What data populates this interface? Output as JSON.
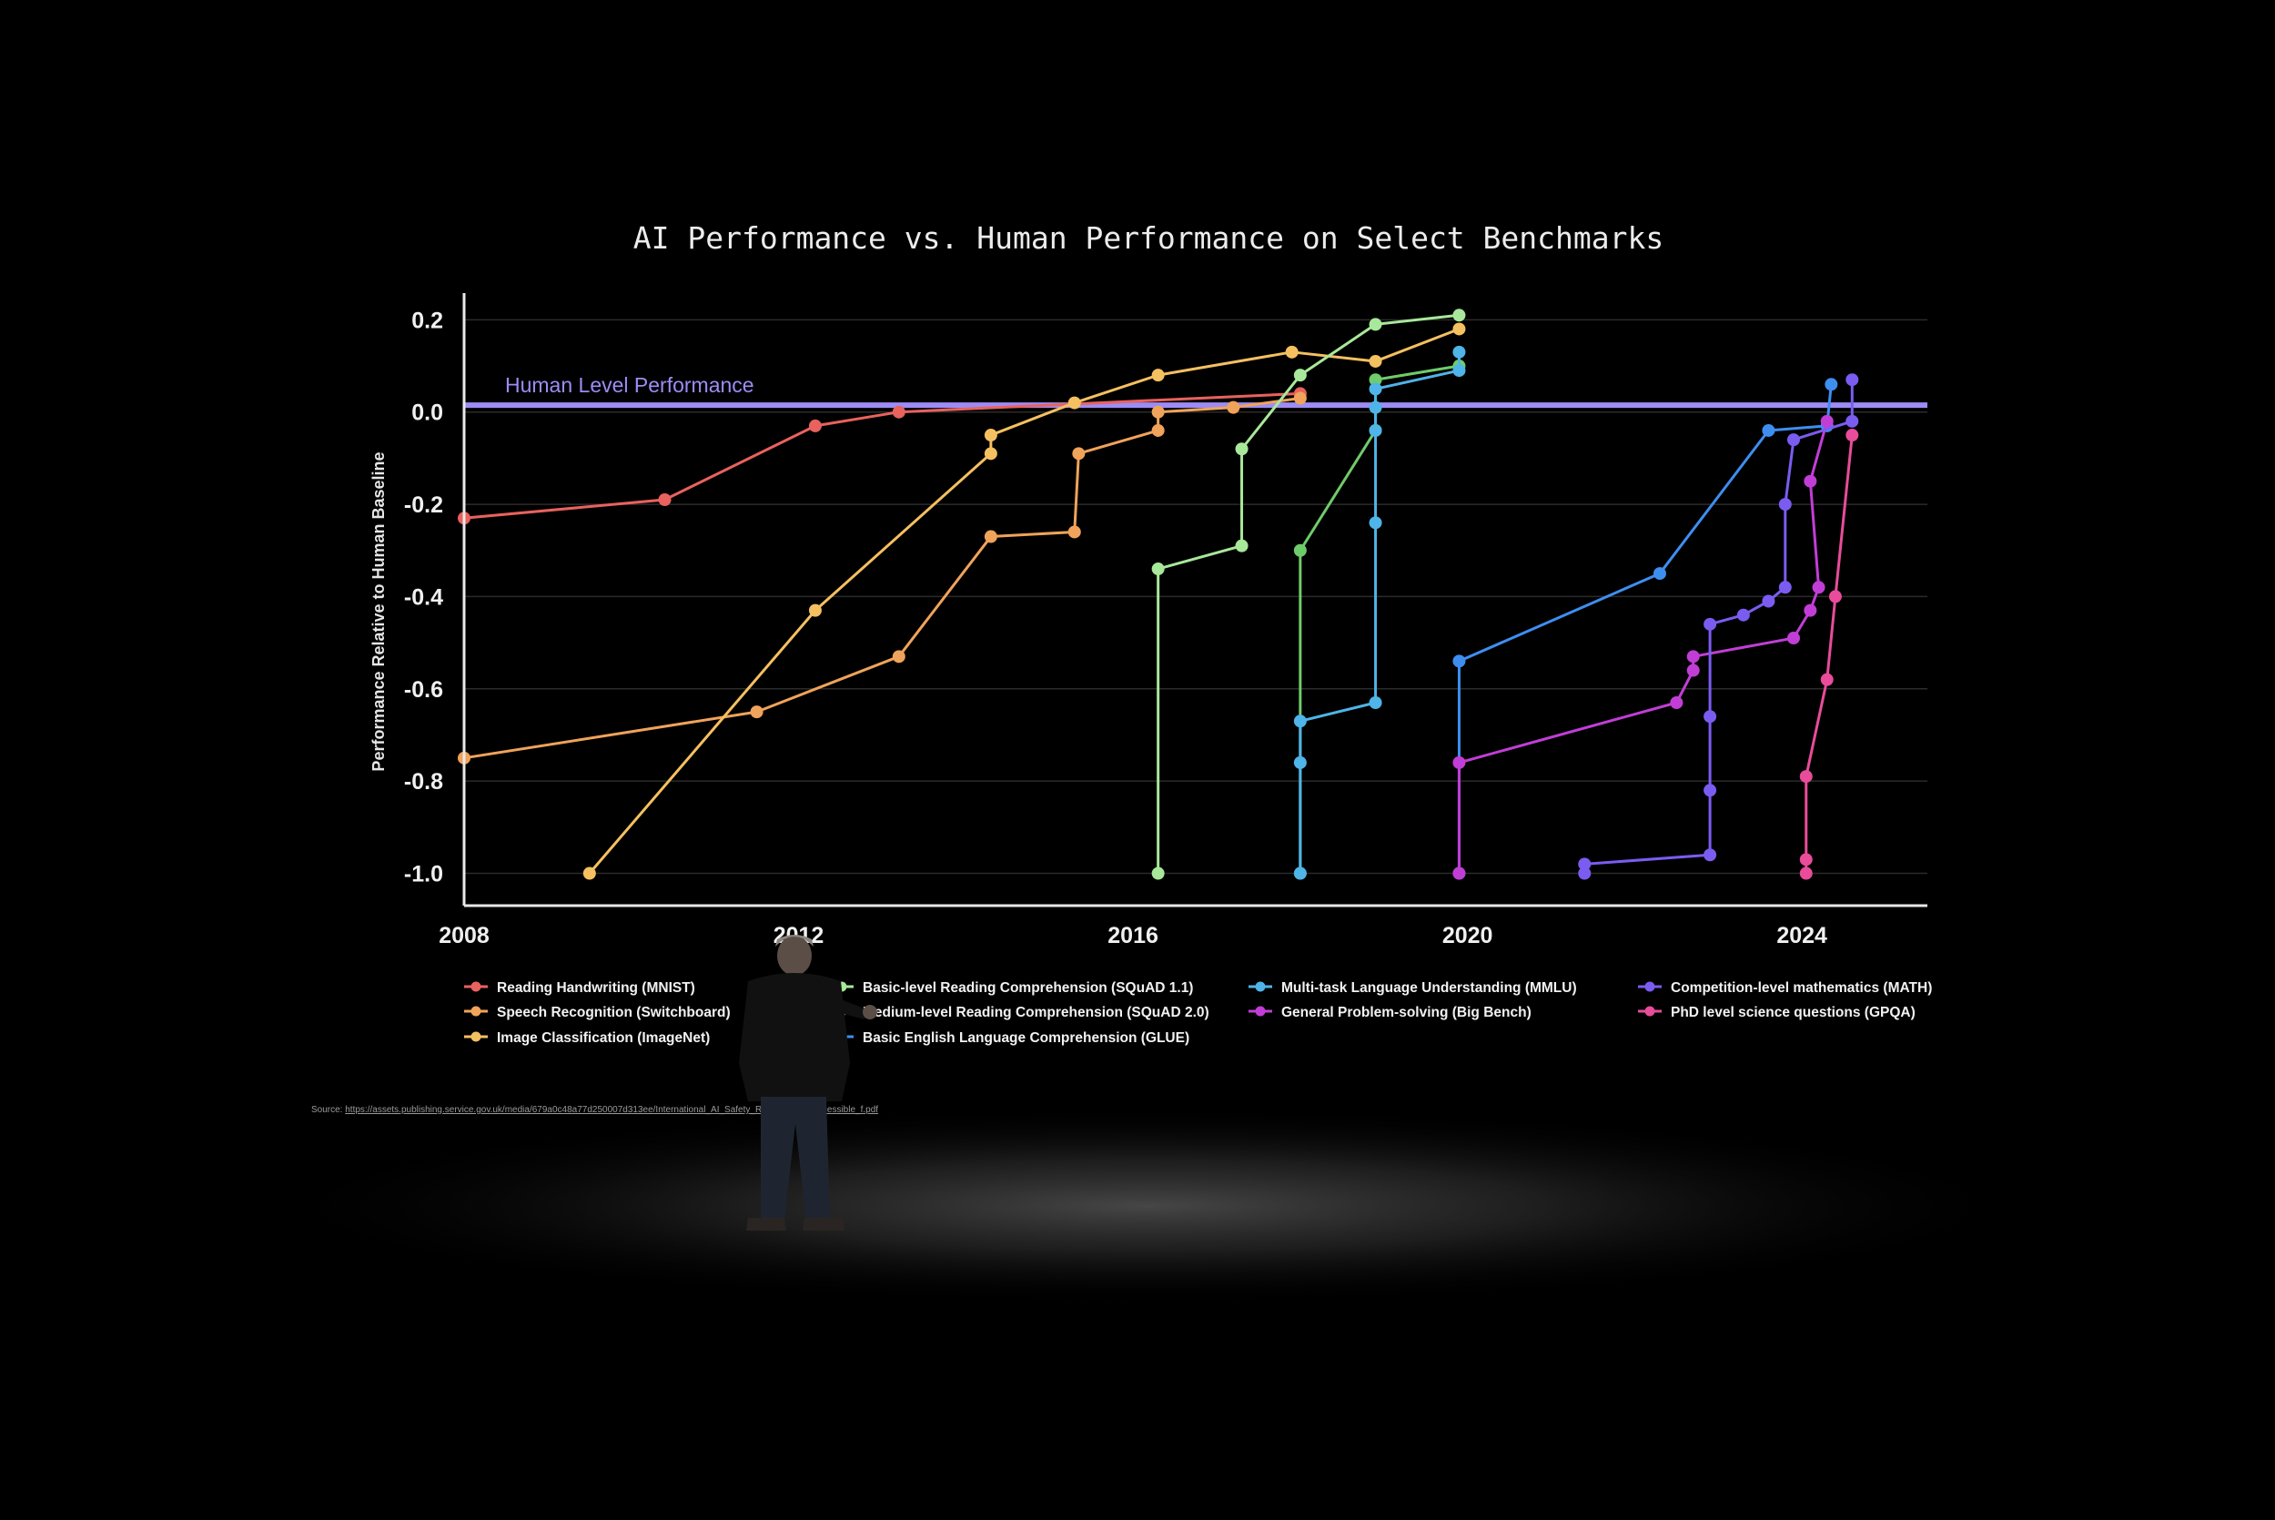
{
  "chart_data": {
    "type": "line",
    "title": "AI Performance vs. Human Performance on Select Benchmarks",
    "ylabel": "Performance Relative to Human Baseline",
    "xlabel": "",
    "xlim": [
      2008,
      2025.5
    ],
    "ylim": [
      -1.07,
      0.25
    ],
    "x_ticks": [
      2008,
      2012,
      2016,
      2020,
      2024
    ],
    "y_ticks": [
      0.2,
      0.0,
      -0.2,
      -0.4,
      -0.6,
      -0.8,
      -1.0
    ],
    "y_tick_labels": [
      "0.2",
      "0.0",
      "-0.2",
      "-0.4",
      "-0.6",
      "-0.8",
      "-1.0"
    ],
    "grid": true,
    "baseline": {
      "label": "Human Level Performance",
      "y": 0.015,
      "color": "#9d8cf5"
    },
    "legend_position": "bottom",
    "series": [
      {
        "name": "Reading Handwriting (MNIST)",
        "color": "#e8625e",
        "points": [
          [
            2008.0,
            -0.23
          ],
          [
            2010.4,
            -0.19
          ],
          [
            2012.2,
            -0.03
          ],
          [
            2013.2,
            0.0
          ],
          [
            2018.0,
            0.04
          ]
        ]
      },
      {
        "name": "Speech Recognition (Switchboard)",
        "color": "#f0a35a",
        "points": [
          [
            2008.0,
            -0.75
          ],
          [
            2011.5,
            -0.65
          ],
          [
            2013.2,
            -0.53
          ],
          [
            2014.3,
            -0.27
          ],
          [
            2015.3,
            -0.26
          ],
          [
            2015.35,
            -0.09
          ],
          [
            2016.3,
            -0.04
          ],
          [
            2016.3,
            0.0
          ],
          [
            2017.2,
            0.01
          ],
          [
            2018.0,
            0.03
          ]
        ]
      },
      {
        "name": "Image Classification (ImageNet)",
        "color": "#f5c060",
        "points": [
          [
            2009.5,
            -1.0
          ],
          [
            2012.2,
            -0.43
          ],
          [
            2014.3,
            -0.09
          ],
          [
            2014.3,
            -0.05
          ],
          [
            2015.3,
            0.02
          ],
          [
            2016.3,
            0.08
          ],
          [
            2017.9,
            0.13
          ],
          [
            2018.9,
            0.11
          ],
          [
            2019.9,
            0.18
          ]
        ]
      },
      {
        "name": "Basic-level Reading Comprehension (SQuAD 1.1)",
        "color": "#a8e89a",
        "points": [
          [
            2016.3,
            -1.0
          ],
          [
            2016.3,
            -0.34
          ],
          [
            2017.3,
            -0.29
          ],
          [
            2017.3,
            -0.08
          ],
          [
            2018.0,
            0.08
          ],
          [
            2018.9,
            0.19
          ],
          [
            2019.9,
            0.21
          ]
        ]
      },
      {
        "name": "Medium-level Reading Comprehension (SQuAD 2.0)",
        "color": "#6fcc6a",
        "points": [
          [
            2018.0,
            -1.0
          ],
          [
            2018.0,
            -0.3
          ],
          [
            2018.9,
            -0.04
          ],
          [
            2018.9,
            0.07
          ],
          [
            2019.9,
            0.1
          ]
        ]
      },
      {
        "name": "Basic English Language Comprehension (GLUE)",
        "color": "#3e8ef0",
        "points": [
          [
            2019.9,
            -1.0
          ],
          [
            2019.9,
            -0.54
          ],
          [
            2022.3,
            -0.35
          ],
          [
            2023.6,
            -0.04
          ],
          [
            2024.3,
            -0.03
          ],
          [
            2024.35,
            0.06
          ]
        ]
      },
      {
        "name": "Multi-task Language Understanding (MMLU)",
        "color": "#4fb4e8",
        "points": [
          [
            2018.0,
            -1.0
          ],
          [
            2018.0,
            -0.76
          ],
          [
            2018.0,
            -0.67
          ],
          [
            2018.9,
            -0.63
          ],
          [
            2018.9,
            -0.24
          ],
          [
            2018.9,
            -0.04
          ],
          [
            2018.9,
            0.01
          ],
          [
            2018.9,
            0.05
          ],
          [
            2019.9,
            0.09
          ],
          [
            2019.9,
            0.13
          ]
        ]
      },
      {
        "name": "General Problem-solving (Big Bench)",
        "color": "#c13ed6",
        "points": [
          [
            2019.9,
            -1.0
          ],
          [
            2019.9,
            -0.76
          ],
          [
            2022.5,
            -0.63
          ],
          [
            2022.7,
            -0.56
          ],
          [
            2022.7,
            -0.53
          ],
          [
            2023.9,
            -0.49
          ],
          [
            2024.1,
            -0.43
          ],
          [
            2024.2,
            -0.38
          ],
          [
            2024.1,
            -0.15
          ],
          [
            2024.3,
            -0.02
          ]
        ]
      },
      {
        "name": "Competition-level mathematics (MATH)",
        "color": "#7b5cf0",
        "points": [
          [
            2021.4,
            -1.0
          ],
          [
            2021.4,
            -0.98
          ],
          [
            2022.9,
            -0.96
          ],
          [
            2022.9,
            -0.82
          ],
          [
            2022.9,
            -0.66
          ],
          [
            2022.9,
            -0.46
          ],
          [
            2023.3,
            -0.44
          ],
          [
            2023.6,
            -0.41
          ],
          [
            2023.8,
            -0.38
          ],
          [
            2023.8,
            -0.2
          ],
          [
            2023.9,
            -0.06
          ],
          [
            2024.6,
            -0.02
          ],
          [
            2024.6,
            0.07
          ]
        ]
      },
      {
        "name": "PhD level science questions (GPQA)",
        "color": "#e84c9a",
        "points": [
          [
            2024.05,
            -1.0
          ],
          [
            2024.05,
            -0.97
          ],
          [
            2024.05,
            -0.79
          ],
          [
            2024.3,
            -0.58
          ],
          [
            2024.4,
            -0.4
          ],
          [
            2024.6,
            -0.05
          ]
        ]
      }
    ],
    "source_prefix": "Source: ",
    "source_url": "https://assets.publishing.service.gov.uk/media/679a0c48a77d250007d313ee/International_AI_Safety_Report_2025_accessible_f.pdf"
  }
}
